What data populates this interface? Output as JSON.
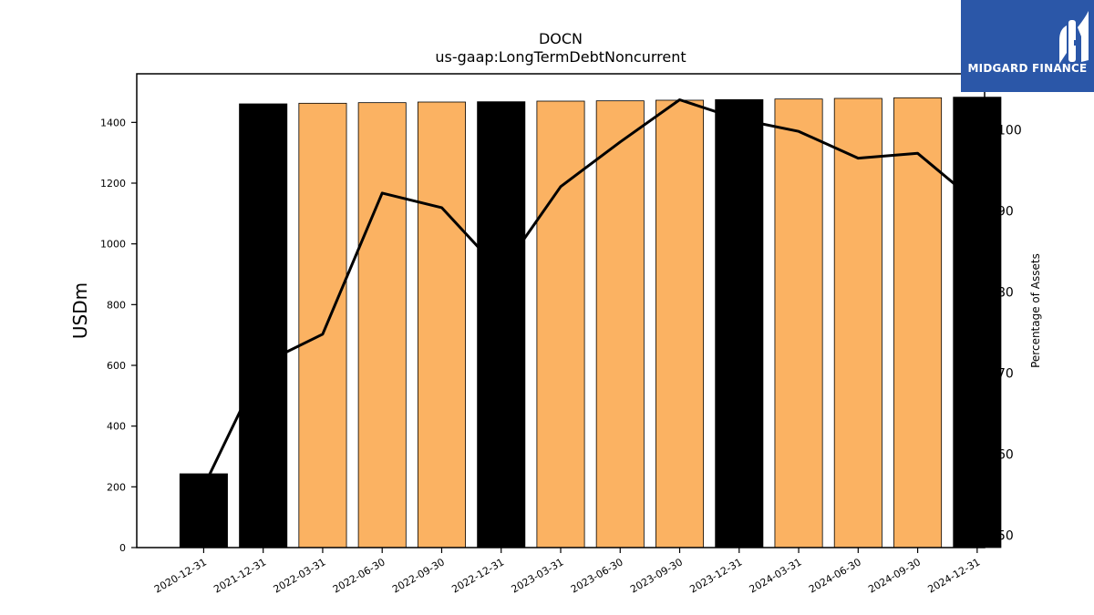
{
  "chart_data": {
    "type": "bar",
    "title": "DOCN",
    "subtitle": "us-gaap:LongTermDebtNoncurrent",
    "ylabel": "USDm",
    "y2label": "Percentage of Assets",
    "ylim": [
      0,
      1560
    ],
    "y2lim": [
      48.5,
      106.9
    ],
    "yticks": [
      0,
      200,
      400,
      600,
      800,
      1000,
      1200,
      1400
    ],
    "y2ticks": [
      50,
      60,
      70,
      80,
      90,
      100
    ],
    "grid": false,
    "categories": [
      "2020-12-31",
      "2021-12-31",
      "2022-03-31",
      "2022-06-30",
      "2022-09-30",
      "2022-12-31",
      "2023-03-31",
      "2023-06-30",
      "2023-09-30",
      "2023-12-31",
      "2024-03-31",
      "2024-06-30",
      "2024-09-30",
      "2024-12-31"
    ],
    "series": [
      {
        "kind": "bar",
        "values": [
          243,
          1461,
          1463,
          1465,
          1467,
          1468,
          1470,
          1471,
          1473,
          1475,
          1477,
          1479,
          1481,
          1483
        ],
        "colors": [
          "#000000",
          "#000000",
          "#fbb262",
          "#fbb262",
          "#fbb262",
          "#000000",
          "#fbb262",
          "#fbb262",
          "#fbb262",
          "#000000",
          "#fbb262",
          "#fbb262",
          "#fbb262",
          "#000000"
        ]
      },
      {
        "kind": "line",
        "axis": "right",
        "color": "#000000",
        "values": [
          56.0,
          71.2,
          74.8,
          92.2,
          90.4,
          82.5,
          93.0,
          98.5,
          103.7,
          101.3,
          99.8,
          96.5,
          97.1,
          91.0
        ]
      }
    ]
  },
  "brand": {
    "name": "MIDGARD FINANCE",
    "color": "#2b57a8",
    "icon": "midgard-logo-icon"
  }
}
